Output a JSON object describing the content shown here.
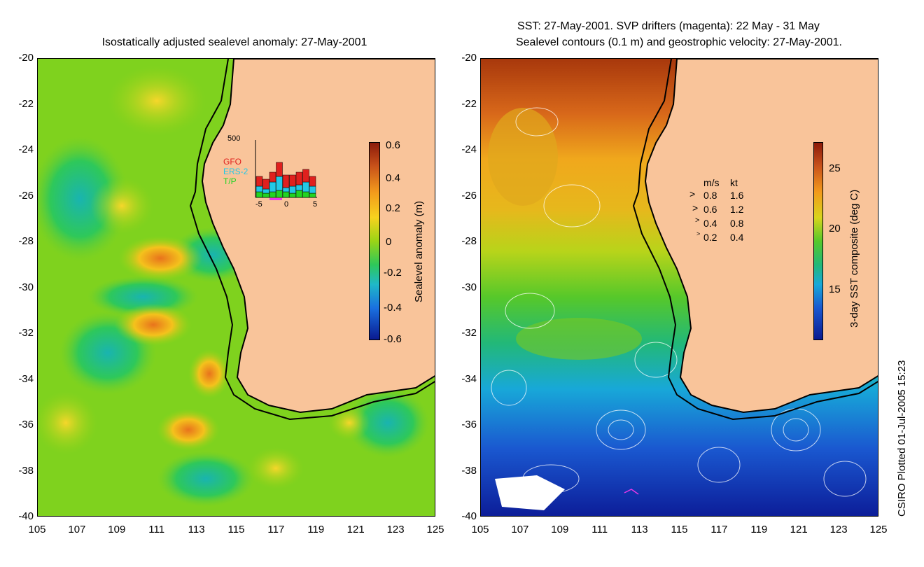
{
  "left_panel": {
    "title": "Isostatically adjusted sealevel anomaly: 27-May-2001",
    "colorbar_label": "Sealevel anomaly (m)",
    "colorbar_ticks": [
      "0.6",
      "0.4",
      "0.2",
      "0",
      "-0.2",
      "-0.4",
      "-0.6"
    ],
    "inset": {
      "ytick": "500",
      "legend": [
        {
          "label": "GFO",
          "color": "#e0201e"
        },
        {
          "label": "ERS-2",
          "color": "#22c8e6"
        },
        {
          "label": "T/P",
          "color": "#22d422"
        }
      ],
      "xticks": [
        "-5",
        "0",
        "5"
      ]
    }
  },
  "right_panel": {
    "title_line1": "SST: 27-May-2001. SVP drifters (magenta): 22 May - 31 May",
    "title_line2": "Sealevel contours (0.1 m) and geostrophic velocity: 27-May-2001.",
    "colorbar_label": "3-day SST composite (deg C)",
    "colorbar_ticks": [
      "25",
      "20",
      "15"
    ],
    "velocity_legend": {
      "header_ms": "m/s",
      "header_kt": "kt",
      "rows": [
        {
          "ms": "0.8",
          "kt": "1.6"
        },
        {
          "ms": "0.6",
          "kt": "1.2"
        },
        {
          "ms": "0.4",
          "kt": "0.8"
        },
        {
          "ms": "0.2",
          "kt": "0.4"
        }
      ]
    }
  },
  "axes": {
    "y_ticks": [
      "-20",
      "-22",
      "-24",
      "-26",
      "-28",
      "-30",
      "-32",
      "-34",
      "-36",
      "-38",
      "-40"
    ],
    "x_ticks": [
      "105",
      "107",
      "109",
      "111",
      "113",
      "115",
      "117",
      "119",
      "121",
      "123",
      "125"
    ]
  },
  "credit": "CSIRO Plotted 01-Jul-2005 15:23",
  "colors": {
    "land": "#f9c49a",
    "coast": "#000000"
  }
}
